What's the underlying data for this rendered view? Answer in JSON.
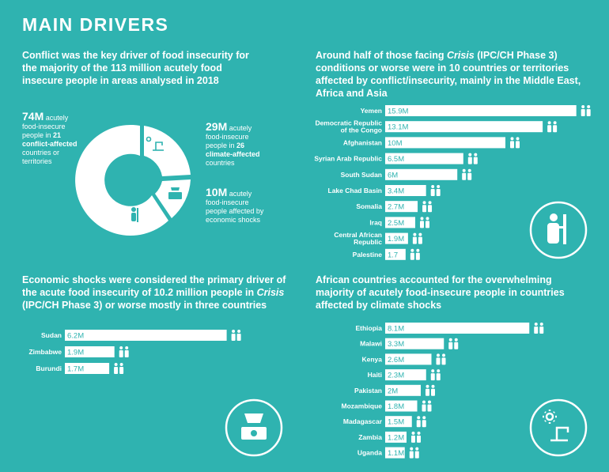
{
  "page_title": "MAIN DRIVERS",
  "headings": {
    "conflict": "Conflict was the key driver of food insecurity for the majority of the 113 million acutely food insecure people in areas analysed in 2018",
    "crisis_pre": "Around half of those facing ",
    "crisis_em": "Crisis",
    "crisis_post": " (IPC/CH Phase 3) conditions or worse were in 10 countries or territories affected by conflict/insecurity, mainly in the Middle East, Africa and Asia",
    "econ_pre": "Economic shocks were considered the primary driver of the acute food insecurity of 10.2 million people in ",
    "econ_em": "Crisis",
    "econ_post": " (IPC/CH Phase 3) or worse mostly in three countries",
    "climate": "African countries accounted for the overwhelming majority of acutely food-insecure people in countries affected by climate shocks"
  },
  "donut": {
    "conflict": {
      "value": "74M",
      "l1": " acutely",
      "l2": "food-insecure",
      "l3": "people in ",
      "count": "21",
      "l4": "conflict-affected",
      "l5": "countries or",
      "l6": "territories"
    },
    "climate": {
      "value": "29M",
      "l1": " acutely",
      "l2": "food-insecure",
      "l3": "people in ",
      "count": "26",
      "l4": "climate-affected",
      "l5": "countries"
    },
    "economic": {
      "value": "10M",
      "l1": " acutely",
      "l2": "food-insecure",
      "l3": "people affected by",
      "l4": "economic shocks"
    }
  },
  "chart_data": [
    {
      "type": "bar",
      "title": "Conflict/insecurity",
      "categories": [
        "Yemen",
        "Democratic Republic of the Congo",
        "Afghanistan",
        "Syrian Arab Republic",
        "South Sudan",
        "Lake Chad Basin",
        "Somalia",
        "Iraq",
        "Central African Republic",
        "Palestine"
      ],
      "label_lines": [
        [
          "Yemen"
        ],
        [
          "Democratic Republic",
          "of the Congo"
        ],
        [
          "Afghanistan"
        ],
        [
          "Syrian Arab Republic"
        ],
        [
          "South Sudan"
        ],
        [
          "Lake Chad Basin"
        ],
        [
          "Somalia"
        ],
        [
          "Iraq"
        ],
        [
          "Central African",
          "Republic"
        ],
        [
          "Palestine"
        ]
      ],
      "values": [
        15.9,
        13.1,
        10,
        6.5,
        6,
        3.4,
        2.7,
        2.5,
        1.9,
        1.7
      ],
      "value_labels": [
        "15.9M",
        "13.1M",
        "10M",
        "6.5M",
        "6M",
        "3.4M",
        "2.7M",
        "2.5M",
        "1.9M",
        "1.7"
      ],
      "unit": "M"
    },
    {
      "type": "bar",
      "title": "Economic shocks",
      "categories": [
        "Sudan",
        "Zimbabwe",
        "Burundi"
      ],
      "label_lines": [
        [
          "Sudan"
        ],
        [
          "Zimbabwe"
        ],
        [
          "Burundi"
        ]
      ],
      "values": [
        6.2,
        1.9,
        1.7
      ],
      "value_labels": [
        "6.2M",
        "1.9M",
        "1.7M"
      ],
      "unit": "M"
    },
    {
      "type": "bar",
      "title": "Climate shocks",
      "categories": [
        "Ethiopia",
        "Malawi",
        "Kenya",
        "Haiti",
        "Pakistan",
        "Mozambique",
        "Madagascar",
        "Zambia",
        "Uganda"
      ],
      "label_lines": [
        [
          "Ethiopia"
        ],
        [
          "Malawi"
        ],
        [
          "Kenya"
        ],
        [
          "Haiti"
        ],
        [
          "Pakistan"
        ],
        [
          "Mozambique"
        ],
        [
          "Madagascar"
        ],
        [
          "Zambia"
        ],
        [
          "Uganda"
        ]
      ],
      "values": [
        8.1,
        3.3,
        2.6,
        2.3,
        2,
        1.8,
        1.5,
        1.2,
        1.1
      ],
      "value_labels": [
        "8.1M",
        "3.3M",
        "2.6M",
        "2.3M",
        "2M",
        "1.8M",
        "1.5M",
        "1.2M",
        "1.1M"
      ],
      "unit": "M"
    }
  ],
  "colors": {
    "background": "#2fb3b0",
    "foreground": "#ffffff"
  }
}
